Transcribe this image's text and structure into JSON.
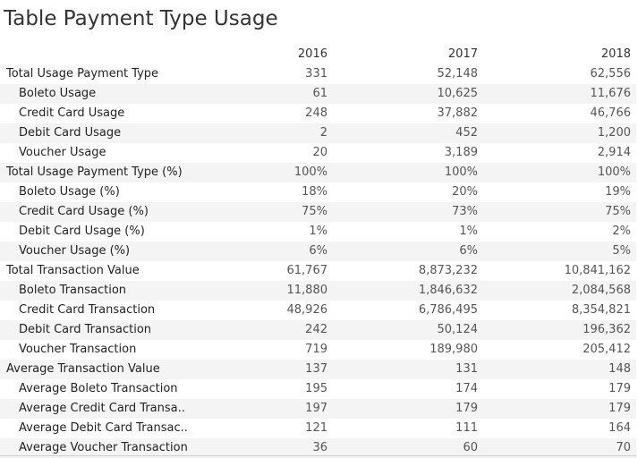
{
  "title": "Table Payment Type Usage",
  "chart_data": {
    "type": "table",
    "title": "Table Payment Type Usage",
    "columns": [
      "2016",
      "2017",
      "2018"
    ],
    "rows": [
      {
        "label": "Total Usage Payment Type",
        "level": 0,
        "values": [
          "331",
          "52,148",
          "62,556"
        ]
      },
      {
        "label": "Boleto Usage",
        "level": 1,
        "values": [
          "61",
          "10,625",
          "11,676"
        ]
      },
      {
        "label": "Credit Card Usage",
        "level": 1,
        "values": [
          "248",
          "37,882",
          "46,766"
        ]
      },
      {
        "label": "Debit Card Usage",
        "level": 1,
        "values": [
          "2",
          "452",
          "1,200"
        ]
      },
      {
        "label": "Voucher Usage",
        "level": 1,
        "values": [
          "20",
          "3,189",
          "2,914"
        ]
      },
      {
        "label": "Total Usage Payment Type (%)",
        "level": 0,
        "values": [
          "100%",
          "100%",
          "100%"
        ]
      },
      {
        "label": "Boleto Usage (%)",
        "level": 1,
        "values": [
          "18%",
          "20%",
          "19%"
        ]
      },
      {
        "label": "Credit Card Usage (%)",
        "level": 1,
        "values": [
          "75%",
          "73%",
          "75%"
        ]
      },
      {
        "label": "Debit Card Usage (%)",
        "level": 1,
        "values": [
          "1%",
          "1%",
          "2%"
        ]
      },
      {
        "label": "Voucher Usage (%)",
        "level": 1,
        "values": [
          "6%",
          "6%",
          "5%"
        ]
      },
      {
        "label": "Total Transaction Value",
        "level": 0,
        "values": [
          "61,767",
          "8,873,232",
          "10,841,162"
        ]
      },
      {
        "label": "Boleto Transaction",
        "level": 1,
        "values": [
          "11,880",
          "1,846,632",
          "2,084,568"
        ]
      },
      {
        "label": "Credit Card Transaction",
        "level": 1,
        "values": [
          "48,926",
          "6,786,495",
          "8,354,821"
        ]
      },
      {
        "label": "Debit Card Transaction",
        "level": 1,
        "values": [
          "242",
          "50,124",
          "196,362"
        ]
      },
      {
        "label": "Voucher Transaction",
        "level": 1,
        "values": [
          "719",
          "189,980",
          "205,412"
        ]
      },
      {
        "label": "Average Transaction Value",
        "level": 0,
        "values": [
          "137",
          "131",
          "148"
        ]
      },
      {
        "label": "Average Boleto Transaction",
        "level": 1,
        "values": [
          "195",
          "174",
          "179"
        ]
      },
      {
        "label": "Average Credit Card Transa..",
        "level": 1,
        "values": [
          "197",
          "179",
          "179"
        ]
      },
      {
        "label": "Average Debit Card Transac..",
        "level": 1,
        "values": [
          "121",
          "111",
          "164"
        ]
      },
      {
        "label": "Average Voucher Transaction",
        "level": 1,
        "values": [
          "36",
          "60",
          "70"
        ]
      }
    ],
    "row_banding": true,
    "grid": false
  }
}
